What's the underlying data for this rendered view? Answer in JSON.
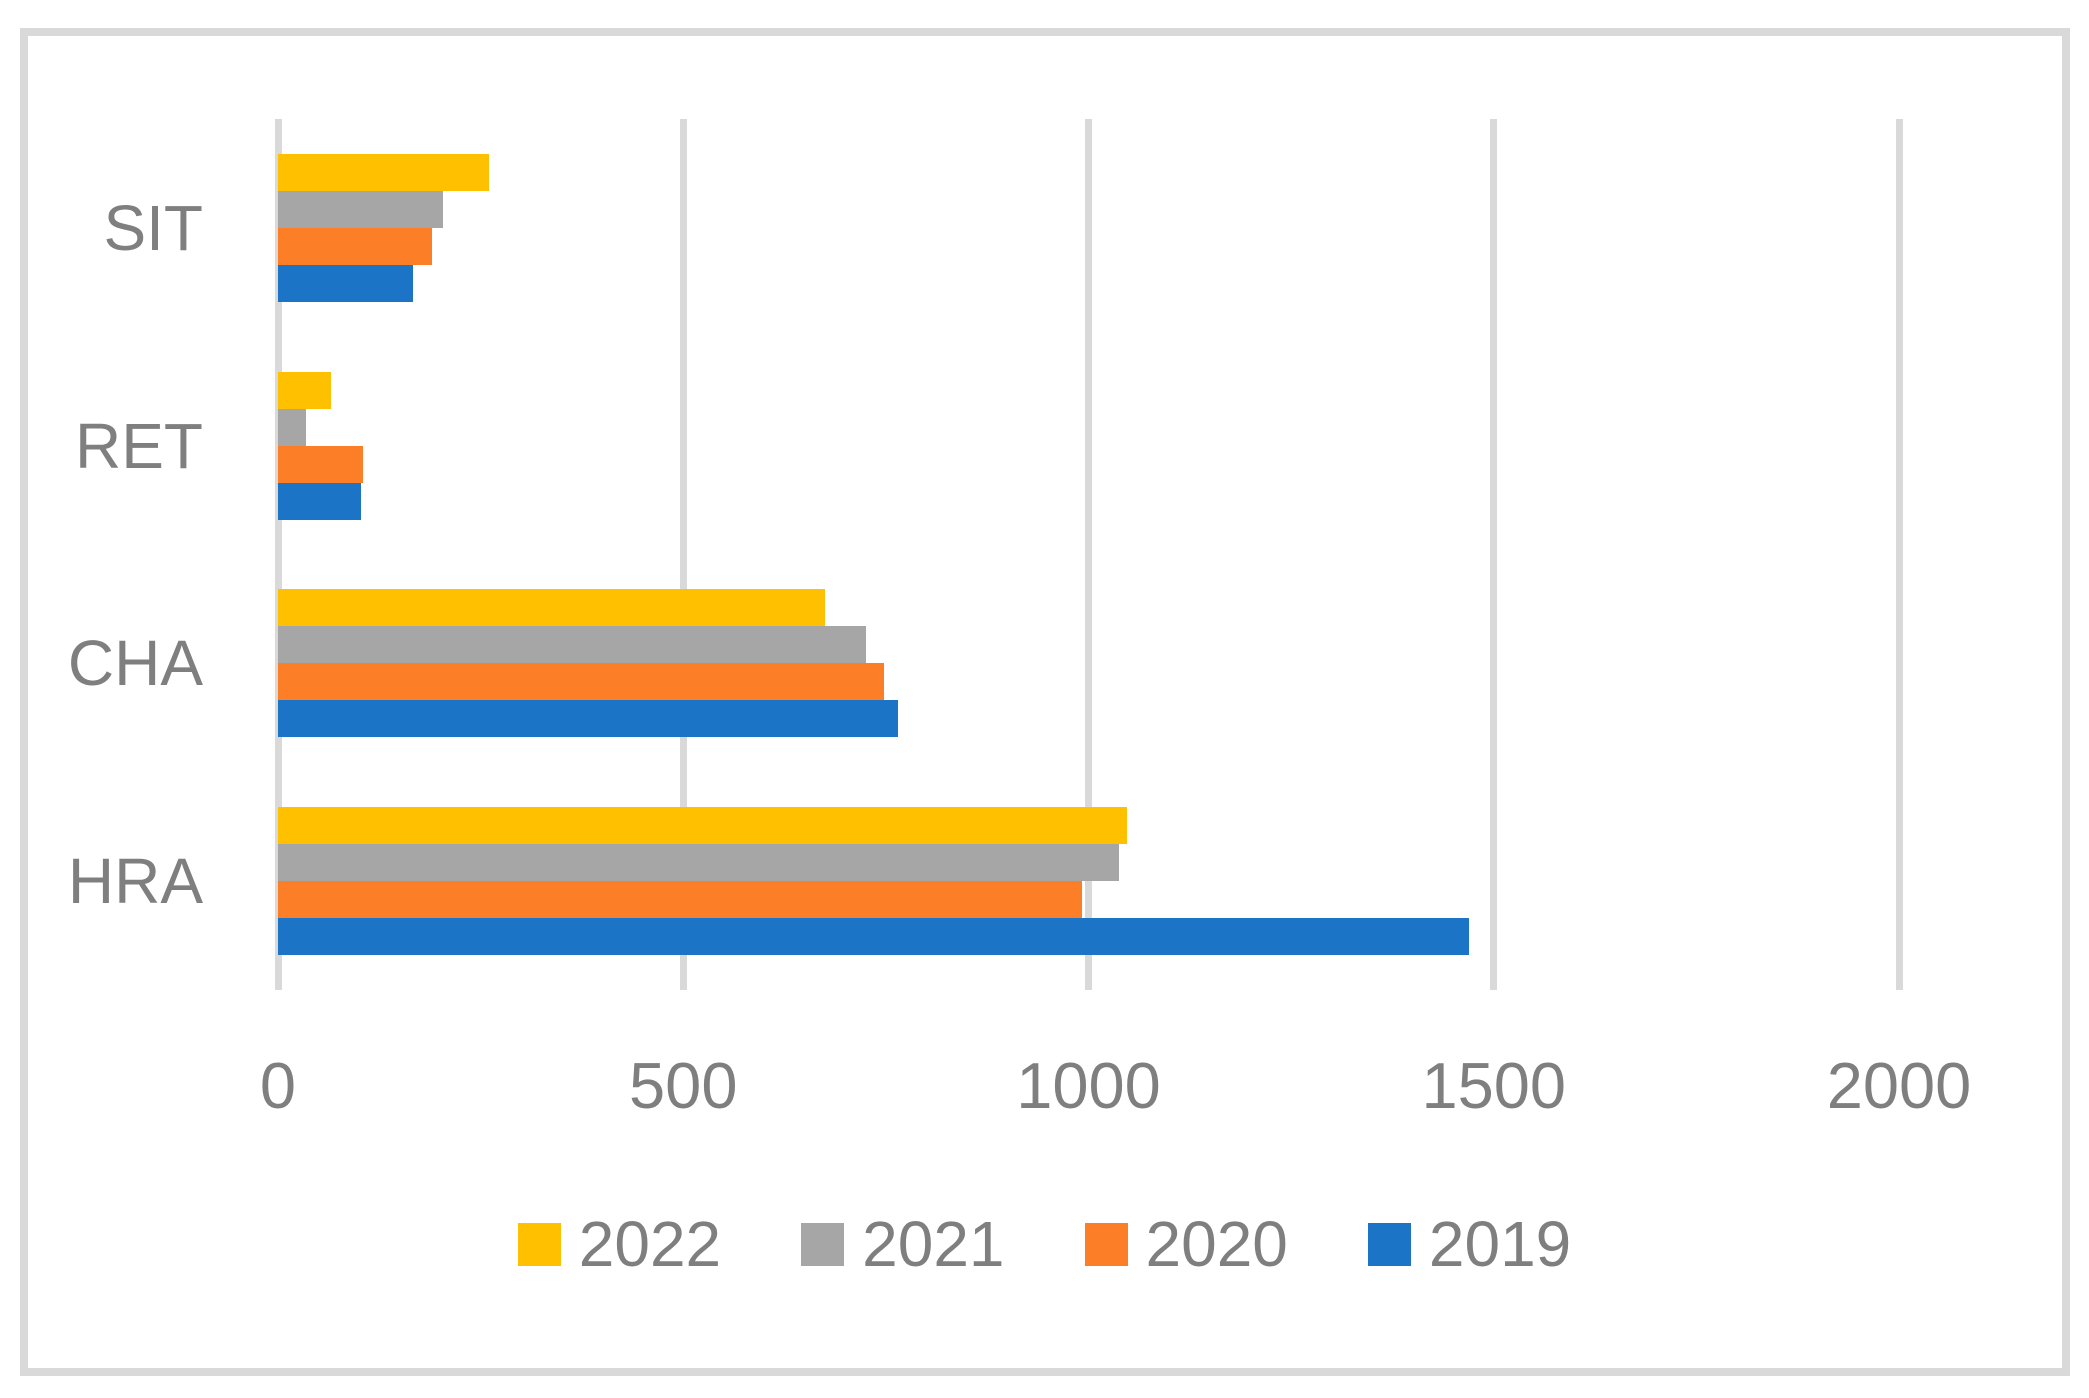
{
  "chart_data": {
    "type": "bar",
    "orientation": "horizontal",
    "title": "",
    "xlabel": "",
    "ylabel": "",
    "categories": [
      "SIT",
      "RET",
      "CHA",
      "HRA"
    ],
    "category_order_note": "displayed top to bottom",
    "series": [
      {
        "name": "2022",
        "color": "#FFC000",
        "values": [
          260,
          66,
          675,
          1048
        ]
      },
      {
        "name": "2021",
        "color": "#A6A6A6",
        "values": [
          204,
          35,
          725,
          1038
        ]
      },
      {
        "name": "2020",
        "color": "#FC7E27",
        "values": [
          190,
          105,
          748,
          992
        ]
      },
      {
        "name": "2019",
        "color": "#1B74C5",
        "values": [
          166,
          103,
          765,
          1470
        ]
      }
    ],
    "xlim": [
      0,
      2000
    ],
    "x_ticks": [
      0,
      500,
      1000,
      1500,
      2000
    ],
    "x_tick_labels": [
      "0",
      "500",
      "1000",
      "1500",
      "2000"
    ],
    "grid": "vertical",
    "gridline_color": "#D9D9D9",
    "border_color": "#D9D9D9",
    "text_color": "#7F7F7F",
    "legend_position": "bottom",
    "legend_labels": [
      "2022",
      "2021",
      "2020",
      "2019"
    ]
  }
}
